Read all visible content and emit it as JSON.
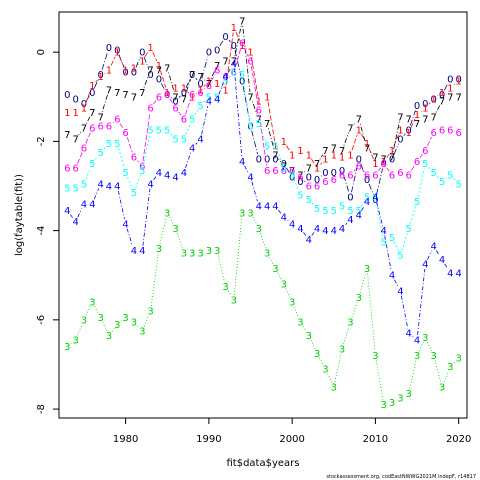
{
  "chart_data": {
    "type": "line",
    "xlabel": "fit$data$years",
    "ylabel": "log(faytable(fit))",
    "x_ticks": [
      1980,
      1990,
      2000,
      2010,
      2020
    ],
    "y_ticks": [
      0,
      -2,
      -4,
      -6,
      -8
    ],
    "xlim": [
      1972,
      2021
    ],
    "ylim": [
      -8.2,
      0.9
    ],
    "x": [
      1973,
      1974,
      1975,
      1976,
      1977,
      1978,
      1979,
      1980,
      1981,
      1982,
      1983,
      1984,
      1985,
      1986,
      1987,
      1988,
      1989,
      1990,
      1991,
      1992,
      1993,
      1994,
      1995,
      1996,
      1997,
      1998,
      1999,
      2000,
      2001,
      2002,
      2003,
      2004,
      2005,
      2006,
      2007,
      2008,
      2009,
      2010,
      2011,
      2012,
      2013,
      2014,
      2015,
      2016,
      2017,
      2018,
      2019,
      2020
    ],
    "series": [
      {
        "name": "0",
        "color": "#000080",
        "values": [
          -0.95,
          -1.05,
          -1.15,
          -0.9,
          -0.5,
          0.1,
          0.05,
          -0.45,
          -0.45,
          0.0,
          -0.5,
          -0.6,
          -0.95,
          -1.1,
          -0.9,
          -0.5,
          -0.7,
          0.0,
          0.05,
          0.35,
          0.15,
          -0.65,
          -1.65,
          -2.4,
          -2.4,
          -2.4,
          -2.5,
          -2.8,
          -2.9,
          -2.8,
          -2.85,
          -2.7,
          -2.7,
          -2.65,
          -3.25,
          -2.4,
          -2.85,
          -3.3,
          -2.5,
          -2.4,
          -1.95,
          -1.75,
          -1.2,
          -1.15,
          -1.05,
          -0.95,
          -0.6,
          -0.6
        ]
      },
      {
        "name": "1",
        "color": "#FF0000",
        "values": [
          -1.35,
          -1.35,
          -1.25,
          -0.75,
          -0.55,
          -0.4,
          0.0,
          -0.4,
          -0.35,
          -0.2,
          0.1,
          -0.3,
          -0.9,
          -0.8,
          -0.8,
          -1.0,
          -0.85,
          -0.65,
          -0.7,
          -0.85,
          0.55,
          0.15,
          0.0,
          -1.1,
          -1.0,
          -2.1,
          -2.0,
          -2.3,
          -2.2,
          -2.3,
          -2.6,
          -2.4,
          -2.3,
          -2.35,
          -2.3,
          -1.75,
          -2.05,
          -2.5,
          -2.45,
          -2.2,
          -1.75,
          -1.8,
          -1.4,
          -1.25,
          -1.05,
          -0.9,
          -0.8,
          -0.65
        ]
      },
      {
        "name": "7",
        "color": "#000000",
        "values": [
          -1.85,
          -1.95,
          -1.7,
          -1.35,
          -1.45,
          -0.85,
          -0.9,
          -0.95,
          -1.0,
          -0.9,
          -0.4,
          -0.4,
          -0.35,
          -1.0,
          -1.05,
          -0.5,
          -0.55,
          -0.7,
          -0.3,
          -0.2,
          -0.2,
          0.7,
          -1.0,
          -1.5,
          -1.6,
          -2.3,
          -2.55,
          -2.65,
          -2.75,
          -2.6,
          -2.5,
          -2.2,
          -2.15,
          -2.2,
          -1.7,
          -1.5,
          -2.15,
          -2.35,
          -2.4,
          -2.35,
          -1.45,
          -1.5,
          -1.6,
          -1.5,
          -1.45,
          -1.1,
          -1.0,
          -1.0
        ]
      },
      {
        "name": "6",
        "color": "#FF00FF",
        "values": [
          -2.6,
          -2.6,
          -2.15,
          -1.7,
          -1.65,
          -1.65,
          -1.5,
          -1.8,
          -2.35,
          -2.55,
          -1.25,
          -1.0,
          -0.95,
          -1.25,
          -1.5,
          -0.95,
          -0.9,
          -0.75,
          -0.4,
          -0.55,
          -0.45,
          0.2,
          -0.2,
          -1.3,
          -2.65,
          -2.65,
          -2.65,
          -2.65,
          -2.8,
          -3.0,
          -3.0,
          -2.9,
          -2.85,
          -2.75,
          -2.75,
          -2.55,
          -2.75,
          -2.75,
          -2.5,
          -2.75,
          -2.7,
          -2.75,
          -2.45,
          -2.2,
          -1.8,
          -1.75,
          -1.75,
          -1.8
        ]
      },
      {
        "name": "5",
        "color": "#00FFFF",
        "values": [
          -3.05,
          -3.05,
          -2.95,
          -2.5,
          -2.25,
          -2.05,
          -2.05,
          -2.7,
          -3.15,
          -2.65,
          -1.75,
          -1.75,
          -1.75,
          -1.95,
          -1.95,
          -1.5,
          -1.2,
          -1.0,
          -1.0,
          -0.65,
          -0.45,
          -0.5,
          -1.65,
          -1.6,
          -2.1,
          -2.1,
          -2.6,
          -2.75,
          -3.2,
          -3.3,
          -3.5,
          -3.55,
          -3.55,
          -3.45,
          -3.55,
          -3.55,
          -3.25,
          -3.25,
          -4.25,
          -4.15,
          -4.55,
          -3.95,
          -3.35,
          -2.5,
          -2.7,
          -2.9,
          -2.75,
          -2.95
        ]
      },
      {
        "name": "4",
        "color": "#0000FF",
        "values": [
          -3.55,
          -3.8,
          -3.4,
          -3.4,
          -2.95,
          -3.0,
          -3.0,
          -3.85,
          -4.45,
          -4.45,
          -2.95,
          -2.7,
          -2.75,
          -2.8,
          -2.7,
          -2.15,
          -1.95,
          -1.1,
          -1.05,
          -0.55,
          -0.25,
          -2.45,
          -2.8,
          -3.45,
          -3.45,
          -3.45,
          -3.7,
          -3.85,
          -3.95,
          -4.2,
          -3.95,
          -4.0,
          -4.0,
          -3.95,
          -3.75,
          -3.65,
          -3.35,
          -3.25,
          -4.0,
          -5.0,
          -5.35,
          -6.3,
          -6.45,
          -4.75,
          -4.35,
          -4.65,
          -4.95,
          -4.95
        ]
      },
      {
        "name": "3",
        "color": "#00CD00",
        "values": [
          -6.6,
          -6.45,
          -6.0,
          -5.6,
          -5.95,
          -6.35,
          -6.1,
          -5.95,
          -6.05,
          -6.25,
          -5.8,
          -4.4,
          -3.6,
          -3.95,
          -4.5,
          -4.5,
          -4.5,
          -4.45,
          -4.45,
          -5.25,
          -5.55,
          -3.6,
          -3.6,
          -3.95,
          -4.5,
          -4.85,
          -5.2,
          -5.6,
          -6.05,
          -6.35,
          -6.75,
          -7.1,
          -7.5,
          -6.65,
          -6.05,
          -5.5,
          -4.85,
          -6.8,
          -7.9,
          -7.85,
          -7.75,
          -7.65,
          -6.8,
          -6.4,
          -6.8,
          -7.5,
          -7.05,
          -6.85
        ]
      }
    ],
    "footer": "stockassessment.org, codEastNWWG2021M indepF, r14817"
  }
}
